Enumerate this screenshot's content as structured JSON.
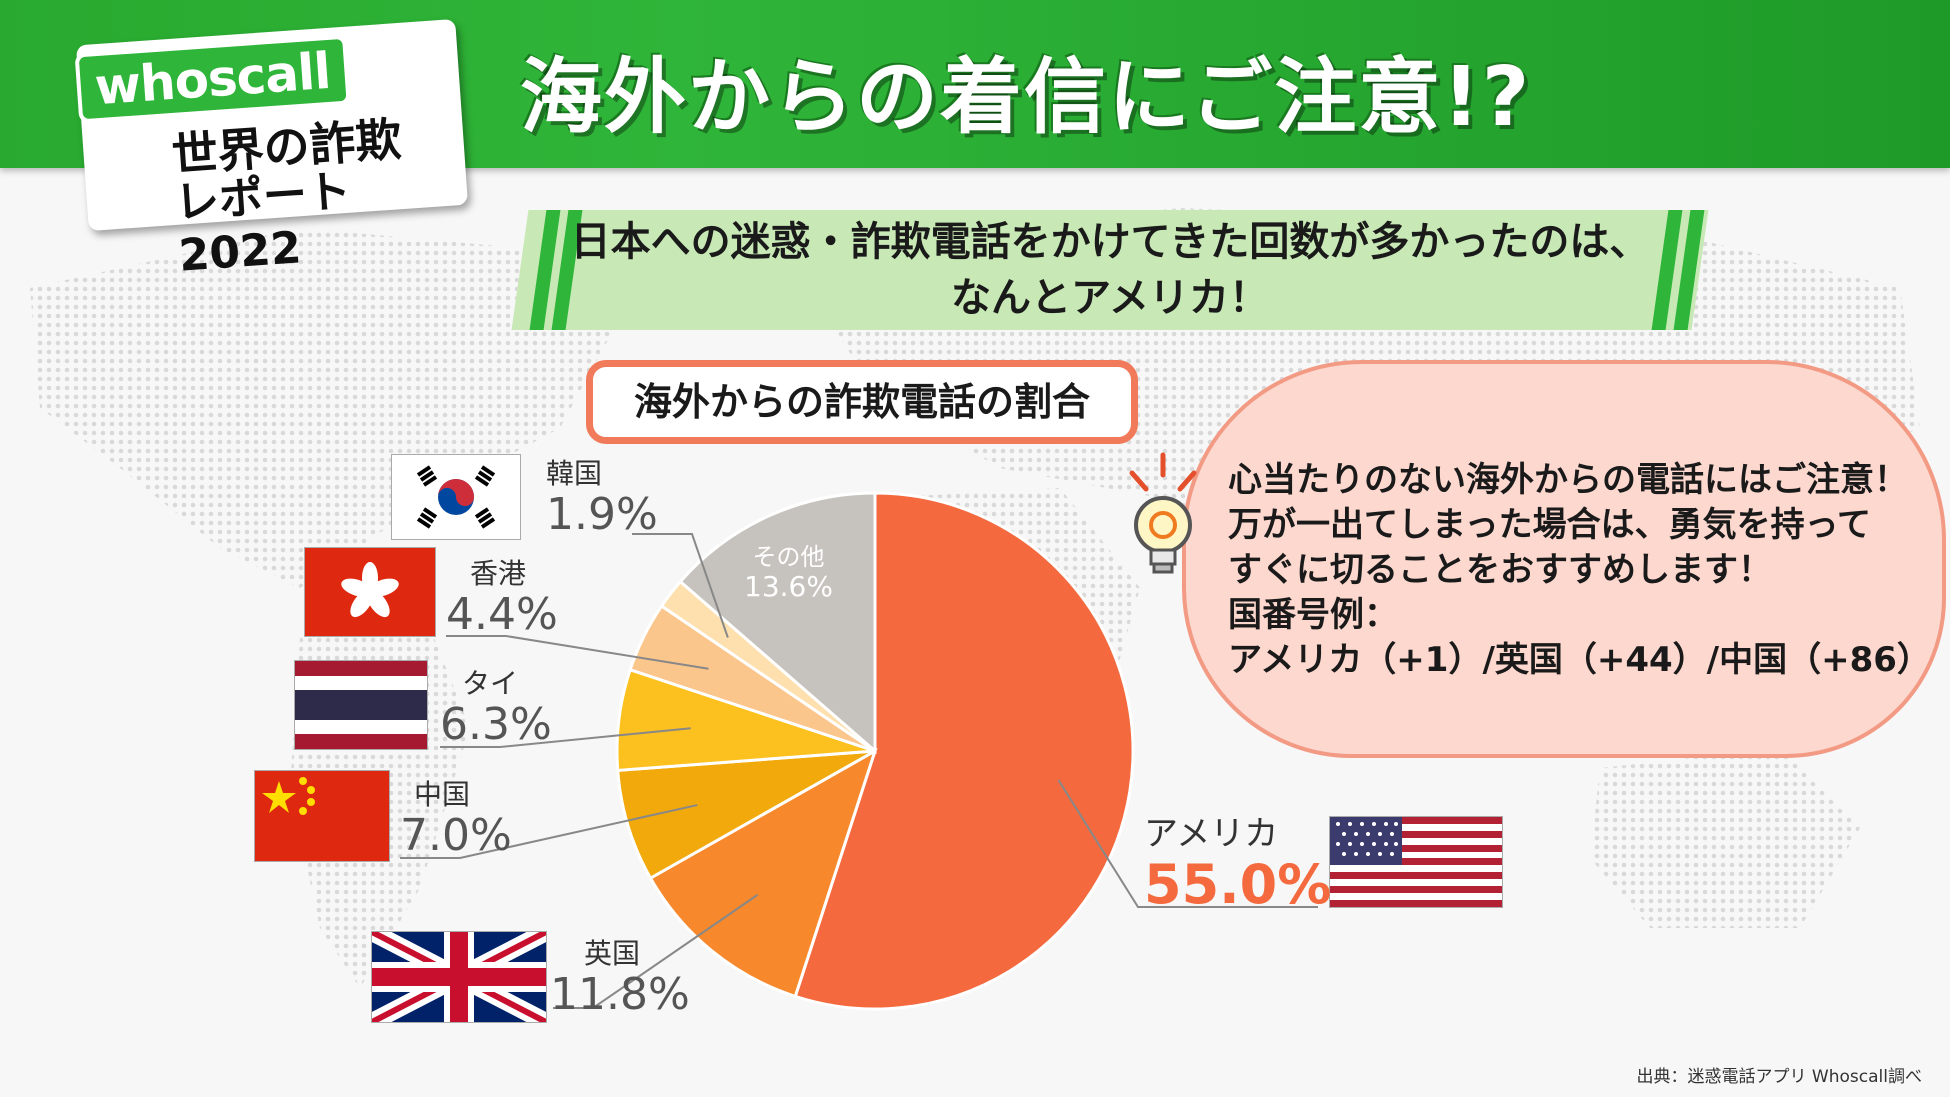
{
  "header": {
    "title": "海外からの着信にご注意!?"
  },
  "logo": {
    "brand": "whoscall",
    "line1": "世界の詐欺",
    "line2": "レポート2022"
  },
  "banner": {
    "line1": "日本への迷惑・詐欺電話をかけてきた回数が多かったのは、",
    "line2": "なんとアメリカ！"
  },
  "callout": {
    "lines": [
      "心当たりのない海外からの電話にはご注意！",
      "万が一出てしまった場合は、勇気を持って",
      "すぐに切ることをおすすめします！",
      "国番号例：",
      "アメリカ（+1）/英国（+44）/中国（+86）"
    ]
  },
  "source": "出典：迷惑電話アプリ Whoscall調べ",
  "colors": {
    "header_green": "#2fb539",
    "usa": "#f46a3e",
    "uk": "#f7892c",
    "china": "#f2a90b",
    "thailand": "#fcc01f",
    "hongkong": "#fbc68c",
    "korea": "#fde0ae",
    "other": "#c6c3be",
    "usa_label": "#f46a3e"
  },
  "chart_data": {
    "type": "pie",
    "title": "海外からの詐欺電話の割合",
    "slices": [
      {
        "label": "アメリカ",
        "value": 55.0,
        "value_label": "55.0%",
        "color": "#f46a3e",
        "flag": "usa-flag-icon"
      },
      {
        "label": "英国",
        "value": 11.8,
        "value_label": "11.8%",
        "color": "#f7892c",
        "flag": "uk-flag-icon"
      },
      {
        "label": "中国",
        "value": 7.0,
        "value_label": "7.0%",
        "color": "#f2a90b",
        "flag": "china-flag-icon"
      },
      {
        "label": "タイ",
        "value": 6.3,
        "value_label": "6.3%",
        "color": "#fcc01f",
        "flag": "thailand-flag-icon"
      },
      {
        "label": "香港",
        "value": 4.4,
        "value_label": "4.4%",
        "color": "#fbc68c",
        "flag": "hongkong-flag-icon"
      },
      {
        "label": "韓国",
        "value": 1.9,
        "value_label": "1.9%",
        "color": "#fde0ae",
        "flag": "korea-flag-icon"
      },
      {
        "label": "その他",
        "value": 13.6,
        "value_label": "13.6%",
        "color": "#c6c3be",
        "flag": ""
      }
    ]
  }
}
